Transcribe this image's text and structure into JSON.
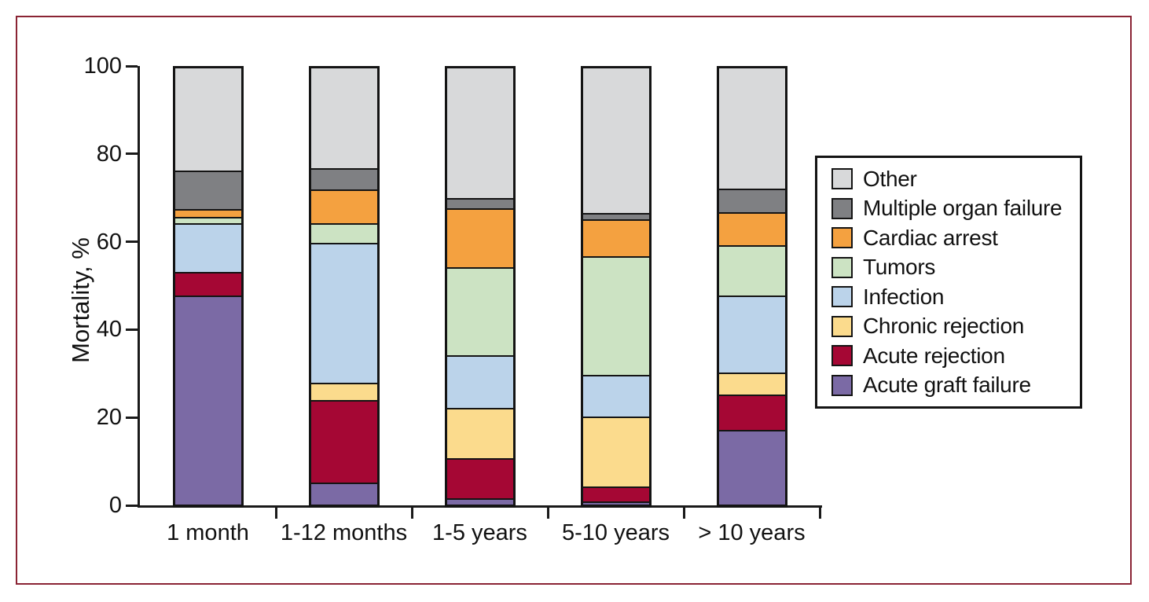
{
  "frame_color": "#8a2434",
  "axis_color": "#1a1a1a",
  "chart_data": {
    "type": "bar",
    "subtype": "stacked-percentage",
    "title": "",
    "xlabel": "",
    "ylabel": "Mortality, %",
    "ylim": [
      0,
      100
    ],
    "y_ticks": [
      0,
      20,
      40,
      60,
      80,
      100
    ],
    "grid": false,
    "legend_position": "right",
    "categories": [
      "1 month",
      "1-12 months",
      "1-5 years",
      "5-10 years",
      "> 10 years"
    ],
    "series": [
      {
        "name": "Acute graft failure",
        "color": "#7b6aa5",
        "values": [
          47.5,
          5.0,
          1.5,
          0.8,
          17.0
        ]
      },
      {
        "name": "Acute rejection",
        "color": "#a50734",
        "values": [
          5.5,
          18.8,
          9.0,
          3.4,
          8.0
        ]
      },
      {
        "name": "Chronic rejection",
        "color": "#fbdb8d",
        "values": [
          0,
          3.9,
          11.5,
          15.8,
          5.0
        ]
      },
      {
        "name": "Infection",
        "color": "#bbd3ea",
        "values": [
          11.0,
          31.9,
          12.0,
          9.5,
          17.5
        ]
      },
      {
        "name": "Tumors",
        "color": "#cce3c3",
        "values": [
          1.5,
          4.4,
          20.0,
          27.0,
          11.5
        ]
      },
      {
        "name": "Cardiac arrest",
        "color": "#f4a140",
        "values": [
          1.7,
          7.7,
          13.5,
          8.5,
          7.5
        ]
      },
      {
        "name": "Multiple organ failure",
        "color": "#7f8083",
        "values": [
          8.8,
          4.9,
          2.3,
          1.3,
          5.5
        ]
      },
      {
        "name": "Other",
        "color": "#d8d9da",
        "values": [
          24.0,
          23.4,
          30.2,
          33.7,
          28.0
        ]
      }
    ],
    "legend_items_top_to_bottom": [
      "Other",
      "Multiple organ failure",
      "Cardiac arrest",
      "Tumors",
      "Infection",
      "Chronic rejection",
      "Acute rejection",
      "Acute graft failure"
    ]
  }
}
